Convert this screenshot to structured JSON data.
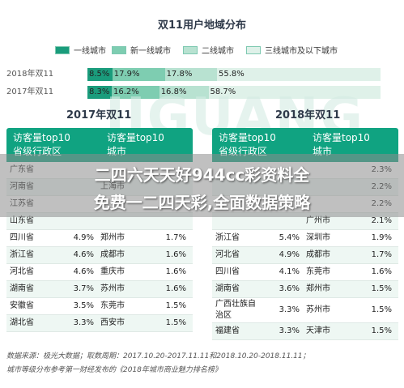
{
  "title": "双11用户地域分布",
  "watermark": "JIGUANG",
  "chart_data": [
    {
      "type": "bar",
      "stacked": true,
      "orientation": "horizontal",
      "title": "双11用户地域分布",
      "categories": [
        "2018年双11",
        "2017年双11"
      ],
      "series": [
        {
          "name": "一线城市",
          "values": [
            8.5,
            8.3
          ],
          "labels": [
            "8.5%",
            "8.3%"
          ],
          "color": "#1a9c7c"
        },
        {
          "name": "新一线城市",
          "values": [
            17.9,
            16.2
          ],
          "labels": [
            "17.9%",
            "16.2%"
          ],
          "color": "#7ecdb1"
        },
        {
          "name": "二线城市",
          "values": [
            17.8,
            16.8
          ],
          "labels": [
            "17.8%",
            "16.8%"
          ],
          "color": "#b8e2d1"
        },
        {
          "name": "三线城市及以下城市",
          "values": [
            55.8,
            58.7
          ],
          "labels": [
            "55.8%",
            "58.7%"
          ],
          "color": "#dff1e9"
        }
      ],
      "legend_position": "top"
    },
    {
      "type": "table",
      "title": "2017年双11",
      "columns": [
        "访客量top10 省级行政区",
        "访客量top10 城市"
      ],
      "rows": [
        {
          "province": "广东省",
          "province_value": "",
          "city": "",
          "city_value": ""
        },
        {
          "province": "河南省",
          "province_value": "",
          "city": "上海市",
          "city_value": ""
        },
        {
          "province": "江苏省",
          "province_value": "",
          "city": "",
          "city_value": ""
        },
        {
          "province": "山东省",
          "province_value": "",
          "city": "",
          "city_value": ""
        },
        {
          "province": "四川省",
          "province_value": "4.9%",
          "city": "郑州市",
          "city_value": "1.7%"
        },
        {
          "province": "浙江省",
          "province_value": "4.6%",
          "city": "成都市",
          "city_value": "1.6%"
        },
        {
          "province": "河北省",
          "province_value": "4.6%",
          "city": "重庆市",
          "city_value": "1.6%"
        },
        {
          "province": "湖南省",
          "province_value": "3.7%",
          "city": "苏州市",
          "city_value": "1.6%"
        },
        {
          "province": "安徽省",
          "province_value": "3.5%",
          "city": "东莞市",
          "city_value": "1.5%"
        },
        {
          "province": "湖北省",
          "province_value": "3.3%",
          "city": "西安市",
          "city_value": "1.5%"
        }
      ]
    },
    {
      "type": "table",
      "title": "2018年双11",
      "columns": [
        "访客量top10 省级行政区",
        "访客量top10 城市"
      ],
      "rows": [
        {
          "province": "",
          "province_value": "",
          "city": "",
          "city_value": "2.3%"
        },
        {
          "province": "",
          "province_value": "",
          "city": "",
          "city_value": "2.2%"
        },
        {
          "province": "",
          "province_value": "",
          "city": "",
          "city_value": "2.2%"
        },
        {
          "province": "",
          "province_value": "",
          "city": "广州市",
          "city_value": "2.1%"
        },
        {
          "province": "浙江省",
          "province_value": "5.4%",
          "city": "深圳市",
          "city_value": "1.9%"
        },
        {
          "province": "河北省",
          "province_value": "4.9%",
          "city": "成都市",
          "city_value": "1.7%"
        },
        {
          "province": "四川省",
          "province_value": "4.1%",
          "city": "东莞市",
          "city_value": "1.6%"
        },
        {
          "province": "湖南省",
          "province_value": "3.6%",
          "city": "郑州市",
          "city_value": "1.5%"
        },
        {
          "province": "广西壮族自治区",
          "province_value": "3.3%",
          "city": "苏州市",
          "city_value": "1.5%"
        },
        {
          "province": "福建省",
          "province_value": "3.3%",
          "city": "天津市",
          "city_value": "1.5%"
        }
      ]
    }
  ],
  "tables": {
    "left": {
      "year": "2017年双11",
      "col1_h1": "访客量top10",
      "col1_h2": "省级行政区",
      "col2_h1": "访客量top10",
      "col2_h2": "城市"
    },
    "right": {
      "year": "2018年双11",
      "col1_h1": "访客量top10",
      "col1_h2": "省级行政区",
      "col2_h1": "访客量top10",
      "col2_h2": "城市"
    }
  },
  "overlay": {
    "line1": "二四六天天好944cc彩资料全",
    "line2": "免费一二四天彩,全面数据策略"
  },
  "footer": {
    "line1": "数据来源：极光大数据；取数周期：2017.10.20-2017.11.11和2018.10.20-2018.11.11；",
    "line2": "城市等级分布参考第一财经发布的《2018年城市商业魅力排名榜》"
  }
}
